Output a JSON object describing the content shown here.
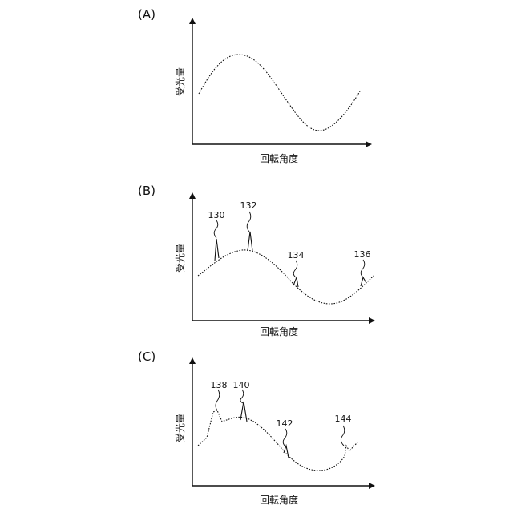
{
  "panels": [
    {
      "id": "A",
      "label": "(A)",
      "ylabel": "受光量",
      "xlabel": "回転角度",
      "callouts": []
    },
    {
      "id": "B",
      "label": "(B)",
      "ylabel": "受光量",
      "xlabel": "回転角度",
      "callouts": [
        "130",
        "132",
        "134",
        "136"
      ]
    },
    {
      "id": "C",
      "label": "(C)",
      "ylabel": "受光量",
      "xlabel": "回転角度",
      "callouts": [
        "138",
        "140",
        "142",
        "144"
      ]
    }
  ]
}
